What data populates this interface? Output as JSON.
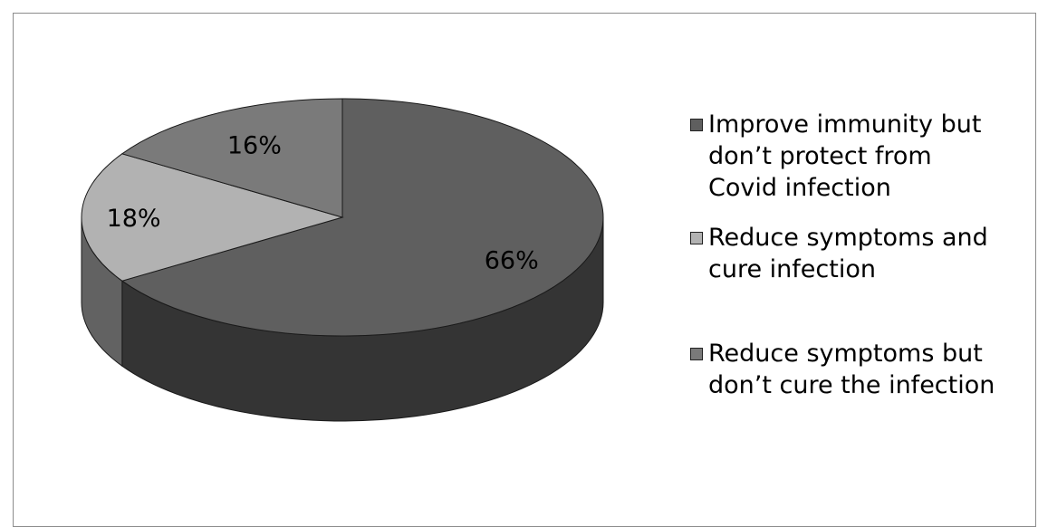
{
  "chart_data": {
    "type": "pie",
    "title": "",
    "slices": [
      {
        "label": "Improve immunity but don’t protect from Covid infection",
        "value": 66,
        "display": "66%",
        "color": "#5f5f5f"
      },
      {
        "label": "Reduce symptoms and cure infection",
        "value": 18,
        "display": "18%",
        "color": "#b2b2b2"
      },
      {
        "label": "Reduce symptoms but don’t cure the infection",
        "value": 16,
        "display": "16%",
        "color": "#7a7a7a"
      }
    ],
    "legend_position": "right",
    "style": "3d"
  }
}
